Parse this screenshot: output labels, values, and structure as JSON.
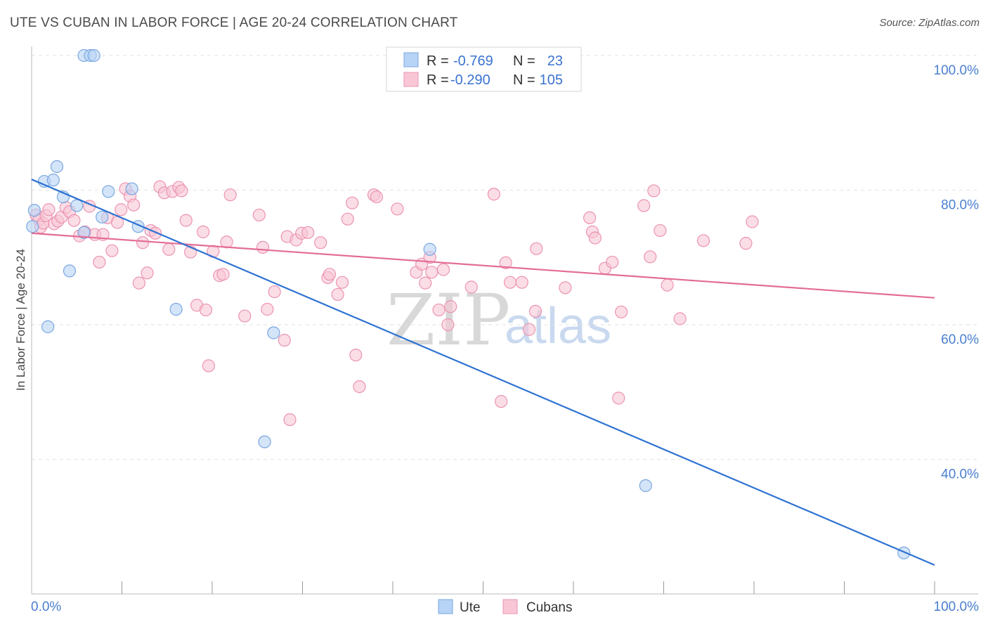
{
  "title": "UTE VS CUBAN IN LABOR FORCE | AGE 20-24 CORRELATION CHART",
  "source": "Source: ZipAtlas.com",
  "watermark": {
    "zip": "ZIP",
    "atlas": "atlas"
  },
  "colors": {
    "ute_fill": "#b7d3f5",
    "ute_stroke": "#7aa7e0",
    "ute_line": "#2e72d2",
    "cuban_fill": "#f9c6d6",
    "cuban_stroke": "#eb94b1",
    "cuban_line": "#e36d97",
    "axis_tick": "#4a7fd1",
    "grid": "#e2e2e2"
  },
  "legend": {
    "ute": {
      "r_label": "R =",
      "r_value": "-0.769",
      "n_label": "N =",
      "n_value": "23"
    },
    "cuban": {
      "r_label": "R =",
      "r_value": "-0.290",
      "n_label": "N =",
      "n_value": "105"
    }
  },
  "bottom_legend": {
    "ute": "Ute",
    "cuban": "Cubans"
  },
  "chart_data": {
    "type": "scatter",
    "title": "UTE VS CUBAN IN LABOR FORCE | AGE 20-24 CORRELATION CHART",
    "xlabel": "",
    "ylabel": "In Labor Force | Age 20-24",
    "xlim": [
      0,
      100
    ],
    "ylim": [
      20,
      100
    ],
    "x_tick_labels": [
      "0.0%",
      "100.0%"
    ],
    "y_ticks": [
      40,
      60,
      80,
      100
    ],
    "y_tick_labels": [
      "40.0%",
      "60.0%",
      "80.0%",
      "100.0%"
    ],
    "grid": true,
    "series": [
      {
        "name": "Ute",
        "r": -0.769,
        "n": 23,
        "trend": {
          "x": [
            0,
            100
          ],
          "y": [
            81.6,
            24.3
          ]
        },
        "points": [
          [
            0.3,
            77
          ],
          [
            0.1,
            74.6
          ],
          [
            1.4,
            81.3
          ],
          [
            1.8,
            59.7
          ],
          [
            2.4,
            81.5
          ],
          [
            2.8,
            83.5
          ],
          [
            3.5,
            79
          ],
          [
            4.2,
            68
          ],
          [
            5.0,
            77.7
          ],
          [
            5.8,
            100
          ],
          [
            6.5,
            100
          ],
          [
            6.9,
            100
          ],
          [
            5.8,
            73.7
          ],
          [
            7.8,
            76
          ],
          [
            8.5,
            79.8
          ],
          [
            11.1,
            80.2
          ],
          [
            11.8,
            74.6
          ],
          [
            16.0,
            62.3
          ],
          [
            25.8,
            42.6
          ],
          [
            26.8,
            58.8
          ],
          [
            44.1,
            71.2
          ],
          [
            68.0,
            36.1
          ],
          [
            96.6,
            26.1
          ]
        ]
      },
      {
        "name": "Cubans",
        "r": -0.29,
        "n": 105,
        "trend": {
          "x": [
            0,
            100
          ],
          "y": [
            73.6,
            64.0
          ]
        },
        "points": [
          [
            0.5,
            76.3
          ],
          [
            0.8,
            75.6
          ],
          [
            1.0,
            74.5
          ],
          [
            1.3,
            75.1
          ],
          [
            1.6,
            76.2
          ],
          [
            1.9,
            77.1
          ],
          [
            2.5,
            75.0
          ],
          [
            2.9,
            75.4
          ],
          [
            3.3,
            76.0
          ],
          [
            3.8,
            77.4
          ],
          [
            4.2,
            76.8
          ],
          [
            4.7,
            75.5
          ],
          [
            5.3,
            73.2
          ],
          [
            5.9,
            73.8
          ],
          [
            6.4,
            77.6
          ],
          [
            7.0,
            73.4
          ],
          [
            7.5,
            69.3
          ],
          [
            7.9,
            73.4
          ],
          [
            8.4,
            75.9
          ],
          [
            8.9,
            71.0
          ],
          [
            9.5,
            75.2
          ],
          [
            9.9,
            77.1
          ],
          [
            10.4,
            80.2
          ],
          [
            10.9,
            79.1
          ],
          [
            11.3,
            77.8
          ],
          [
            11.9,
            66.2
          ],
          [
            12.3,
            72.2
          ],
          [
            12.8,
            67.7
          ],
          [
            13.2,
            74.0
          ],
          [
            13.7,
            73.6
          ],
          [
            14.2,
            80.5
          ],
          [
            14.7,
            79.6
          ],
          [
            15.2,
            71.2
          ],
          [
            15.6,
            79.8
          ],
          [
            16.3,
            80.4
          ],
          [
            16.6,
            79.9
          ],
          [
            17.1,
            75.5
          ],
          [
            17.6,
            70.8
          ],
          [
            18.3,
            62.9
          ],
          [
            19.0,
            73.8
          ],
          [
            19.3,
            62.2
          ],
          [
            19.6,
            53.9
          ],
          [
            20.1,
            70.9
          ],
          [
            20.8,
            67.3
          ],
          [
            21.2,
            67.5
          ],
          [
            21.6,
            72.3
          ],
          [
            22.0,
            79.3
          ],
          [
            23.6,
            61.3
          ],
          [
            25.2,
            76.3
          ],
          [
            25.6,
            71.5
          ],
          [
            26.1,
            62.3
          ],
          [
            26.9,
            64.9
          ],
          [
            28.0,
            57.7
          ],
          [
            28.3,
            73.1
          ],
          [
            28.6,
            45.9
          ],
          [
            29.3,
            72.6
          ],
          [
            29.9,
            73.6
          ],
          [
            30.6,
            73.7
          ],
          [
            32.0,
            72.2
          ],
          [
            32.8,
            67.0
          ],
          [
            33.0,
            67.5
          ],
          [
            33.9,
            64.5
          ],
          [
            34.4,
            66.3
          ],
          [
            35.0,
            75.7
          ],
          [
            35.5,
            78.1
          ],
          [
            35.9,
            55.5
          ],
          [
            36.3,
            50.8
          ],
          [
            37.9,
            79.3
          ],
          [
            38.2,
            79.0
          ],
          [
            40.5,
            77.2
          ],
          [
            42.6,
            67.8
          ],
          [
            43.2,
            69.0
          ],
          [
            43.6,
            66.2
          ],
          [
            44.1,
            70.0
          ],
          [
            44.3,
            67.8
          ],
          [
            45.1,
            62.2
          ],
          [
            45.6,
            68.2
          ],
          [
            46.1,
            60.0
          ],
          [
            46.4,
            62.7
          ],
          [
            48.7,
            65.6
          ],
          [
            51.2,
            79.4
          ],
          [
            52.0,
            48.6
          ],
          [
            52.5,
            69.2
          ],
          [
            53.0,
            66.3
          ],
          [
            54.3,
            66.3
          ],
          [
            55.1,
            59.3
          ],
          [
            55.8,
            62.0
          ],
          [
            55.9,
            71.3
          ],
          [
            59.1,
            65.5
          ],
          [
            61.8,
            75.9
          ],
          [
            62.1,
            73.8
          ],
          [
            62.4,
            72.9
          ],
          [
            63.5,
            68.4
          ],
          [
            64.3,
            69.3
          ],
          [
            65.0,
            49.1
          ],
          [
            65.3,
            61.9
          ],
          [
            67.8,
            77.7
          ],
          [
            68.5,
            70.1
          ],
          [
            68.9,
            79.9
          ],
          [
            69.6,
            74.0
          ],
          [
            70.4,
            65.9
          ],
          [
            71.8,
            60.9
          ],
          [
            74.4,
            72.5
          ],
          [
            79.1,
            72.1
          ],
          [
            79.8,
            75.3
          ]
        ]
      }
    ]
  }
}
